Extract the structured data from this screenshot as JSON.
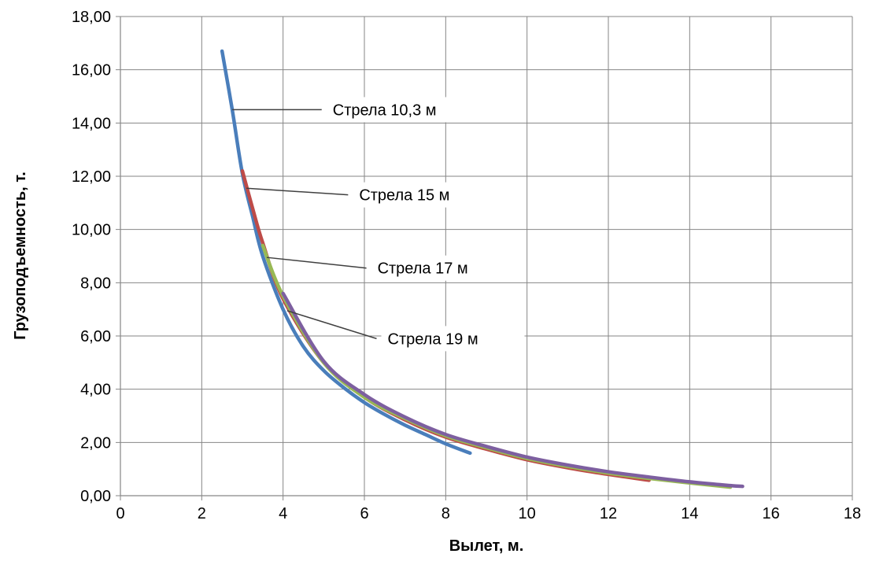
{
  "chart_data": {
    "type": "line",
    "title": "",
    "xlabel": "Вылет, м.",
    "ylabel": "Грузоподъемность, т.",
    "xlim": [
      0,
      18
    ],
    "ylim": [
      0,
      18
    ],
    "x_ticks": [
      "0",
      "2",
      "4",
      "6",
      "8",
      "10",
      "12",
      "14",
      "16",
      "18"
    ],
    "y_ticks": [
      "0,00",
      "2,00",
      "4,00",
      "6,00",
      "8,00",
      "10,00",
      "12,00",
      "14,00",
      "16,00",
      "18,00"
    ],
    "grid": true,
    "legend": "none",
    "series": [
      {
        "name": "Стрела 10,3 м",
        "color": "#4a7ebb",
        "x": [
          2.5,
          2.75,
          3.0,
          3.25,
          3.5,
          4.0,
          4.5,
          5.0,
          5.5,
          6.0,
          6.5,
          7.0,
          7.5,
          8.0,
          8.6
        ],
        "y": [
          16.7,
          14.5,
          12.1,
          10.5,
          9.0,
          7.0,
          5.6,
          4.7,
          4.05,
          3.5,
          3.05,
          2.65,
          2.3,
          1.95,
          1.6
        ]
      },
      {
        "name": "Стрела 15 м",
        "color": "#be4b48",
        "x": [
          3.0,
          3.25,
          3.5,
          4.0,
          5.0,
          6.0,
          7.0,
          8.0,
          9.0,
          10.0,
          11.0,
          12.0,
          13.0
        ],
        "y": [
          12.2,
          10.8,
          9.5,
          7.4,
          5.0,
          3.7,
          2.85,
          2.2,
          1.75,
          1.35,
          1.05,
          0.8,
          0.58
        ]
      },
      {
        "name": "Стрела 17 м",
        "color": "#98b954",
        "x": [
          3.5,
          4.0,
          5.0,
          6.0,
          7.0,
          8.0,
          9.0,
          10.0,
          11.0,
          12.0,
          13.0,
          14.0,
          15.0
        ],
        "y": [
          9.4,
          7.5,
          5.0,
          3.7,
          2.9,
          2.25,
          1.8,
          1.4,
          1.1,
          0.85,
          0.65,
          0.48,
          0.32
        ]
      },
      {
        "name": "Стрела 19 м",
        "color": "#7d5fa0",
        "x": [
          4.0,
          5.0,
          6.0,
          7.0,
          8.0,
          9.0,
          10.0,
          11.0,
          12.0,
          13.0,
          14.0,
          15.0,
          15.3
        ],
        "y": [
          7.6,
          5.05,
          3.8,
          2.95,
          2.3,
          1.85,
          1.45,
          1.15,
          0.9,
          0.7,
          0.52,
          0.38,
          0.35
        ]
      }
    ],
    "annotations": [
      {
        "text": "Стрела 10,3 м",
        "point": [
          2.75,
          14.5
        ],
        "label_at": [
          4.95,
          14.5
        ]
      },
      {
        "text": "Стрела 15 м",
        "point": [
          3.1,
          11.55
        ],
        "label_at": [
          5.6,
          11.3
        ]
      },
      {
        "text": "Стрела 17 м",
        "point": [
          3.6,
          8.95
        ],
        "label_at": [
          6.05,
          8.55
        ]
      },
      {
        "text": "Стрела 19 м",
        "point": [
          4.1,
          6.95
        ],
        "label_at": [
          6.3,
          5.9
        ]
      }
    ]
  }
}
